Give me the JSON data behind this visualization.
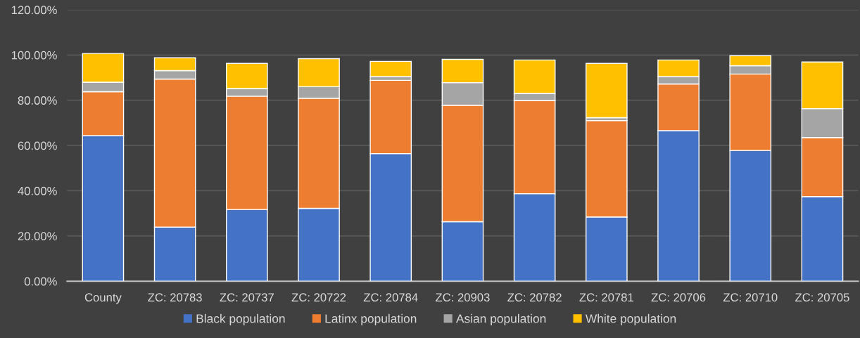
{
  "chart_data": {
    "type": "bar",
    "stacked": true,
    "categories": [
      "County",
      "ZC: 20783",
      "ZC: 20737",
      "ZC: 20722",
      "ZC: 20784",
      "ZC: 20903",
      "ZC: 20782",
      "ZC: 20781",
      "ZC: 20706",
      "ZC: 20710",
      "ZC: 20705"
    ],
    "series": [
      {
        "name": "Black population",
        "color": "#4472c4",
        "values": [
          64.4,
          23.9,
          31.7,
          32.2,
          56.4,
          26.3,
          38.7,
          28.4,
          66.6,
          57.8,
          37.4
        ]
      },
      {
        "name": "Latinx population",
        "color": "#ed7d31",
        "values": [
          19.4,
          65.5,
          50.1,
          48.7,
          32.4,
          51.5,
          41.2,
          42.6,
          20.6,
          33.8,
          26.1
        ]
      },
      {
        "name": "Asian population",
        "color": "#a5a5a5",
        "values": [
          4.2,
          3.7,
          3.4,
          5.1,
          1.7,
          10.0,
          3.2,
          1.3,
          3.3,
          3.7,
          12.8
        ]
      },
      {
        "name": "White population",
        "color": "#ffc000",
        "values": [
          12.7,
          5.7,
          11.1,
          12.4,
          6.7,
          10.3,
          14.7,
          24.0,
          7.3,
          4.4,
          20.6
        ]
      }
    ],
    "ylim": [
      0,
      120
    ],
    "yticks": [
      {
        "value": 0,
        "label": "0.00%"
      },
      {
        "value": 20,
        "label": "20.00%"
      },
      {
        "value": 40,
        "label": "40.00%"
      },
      {
        "value": 60,
        "label": "60.00%"
      },
      {
        "value": 80,
        "label": "80.00%"
      },
      {
        "value": 100,
        "label": "100.00%"
      },
      {
        "value": 120,
        "label": "120.00%"
      }
    ],
    "grid": "y",
    "legend": "bottom"
  }
}
